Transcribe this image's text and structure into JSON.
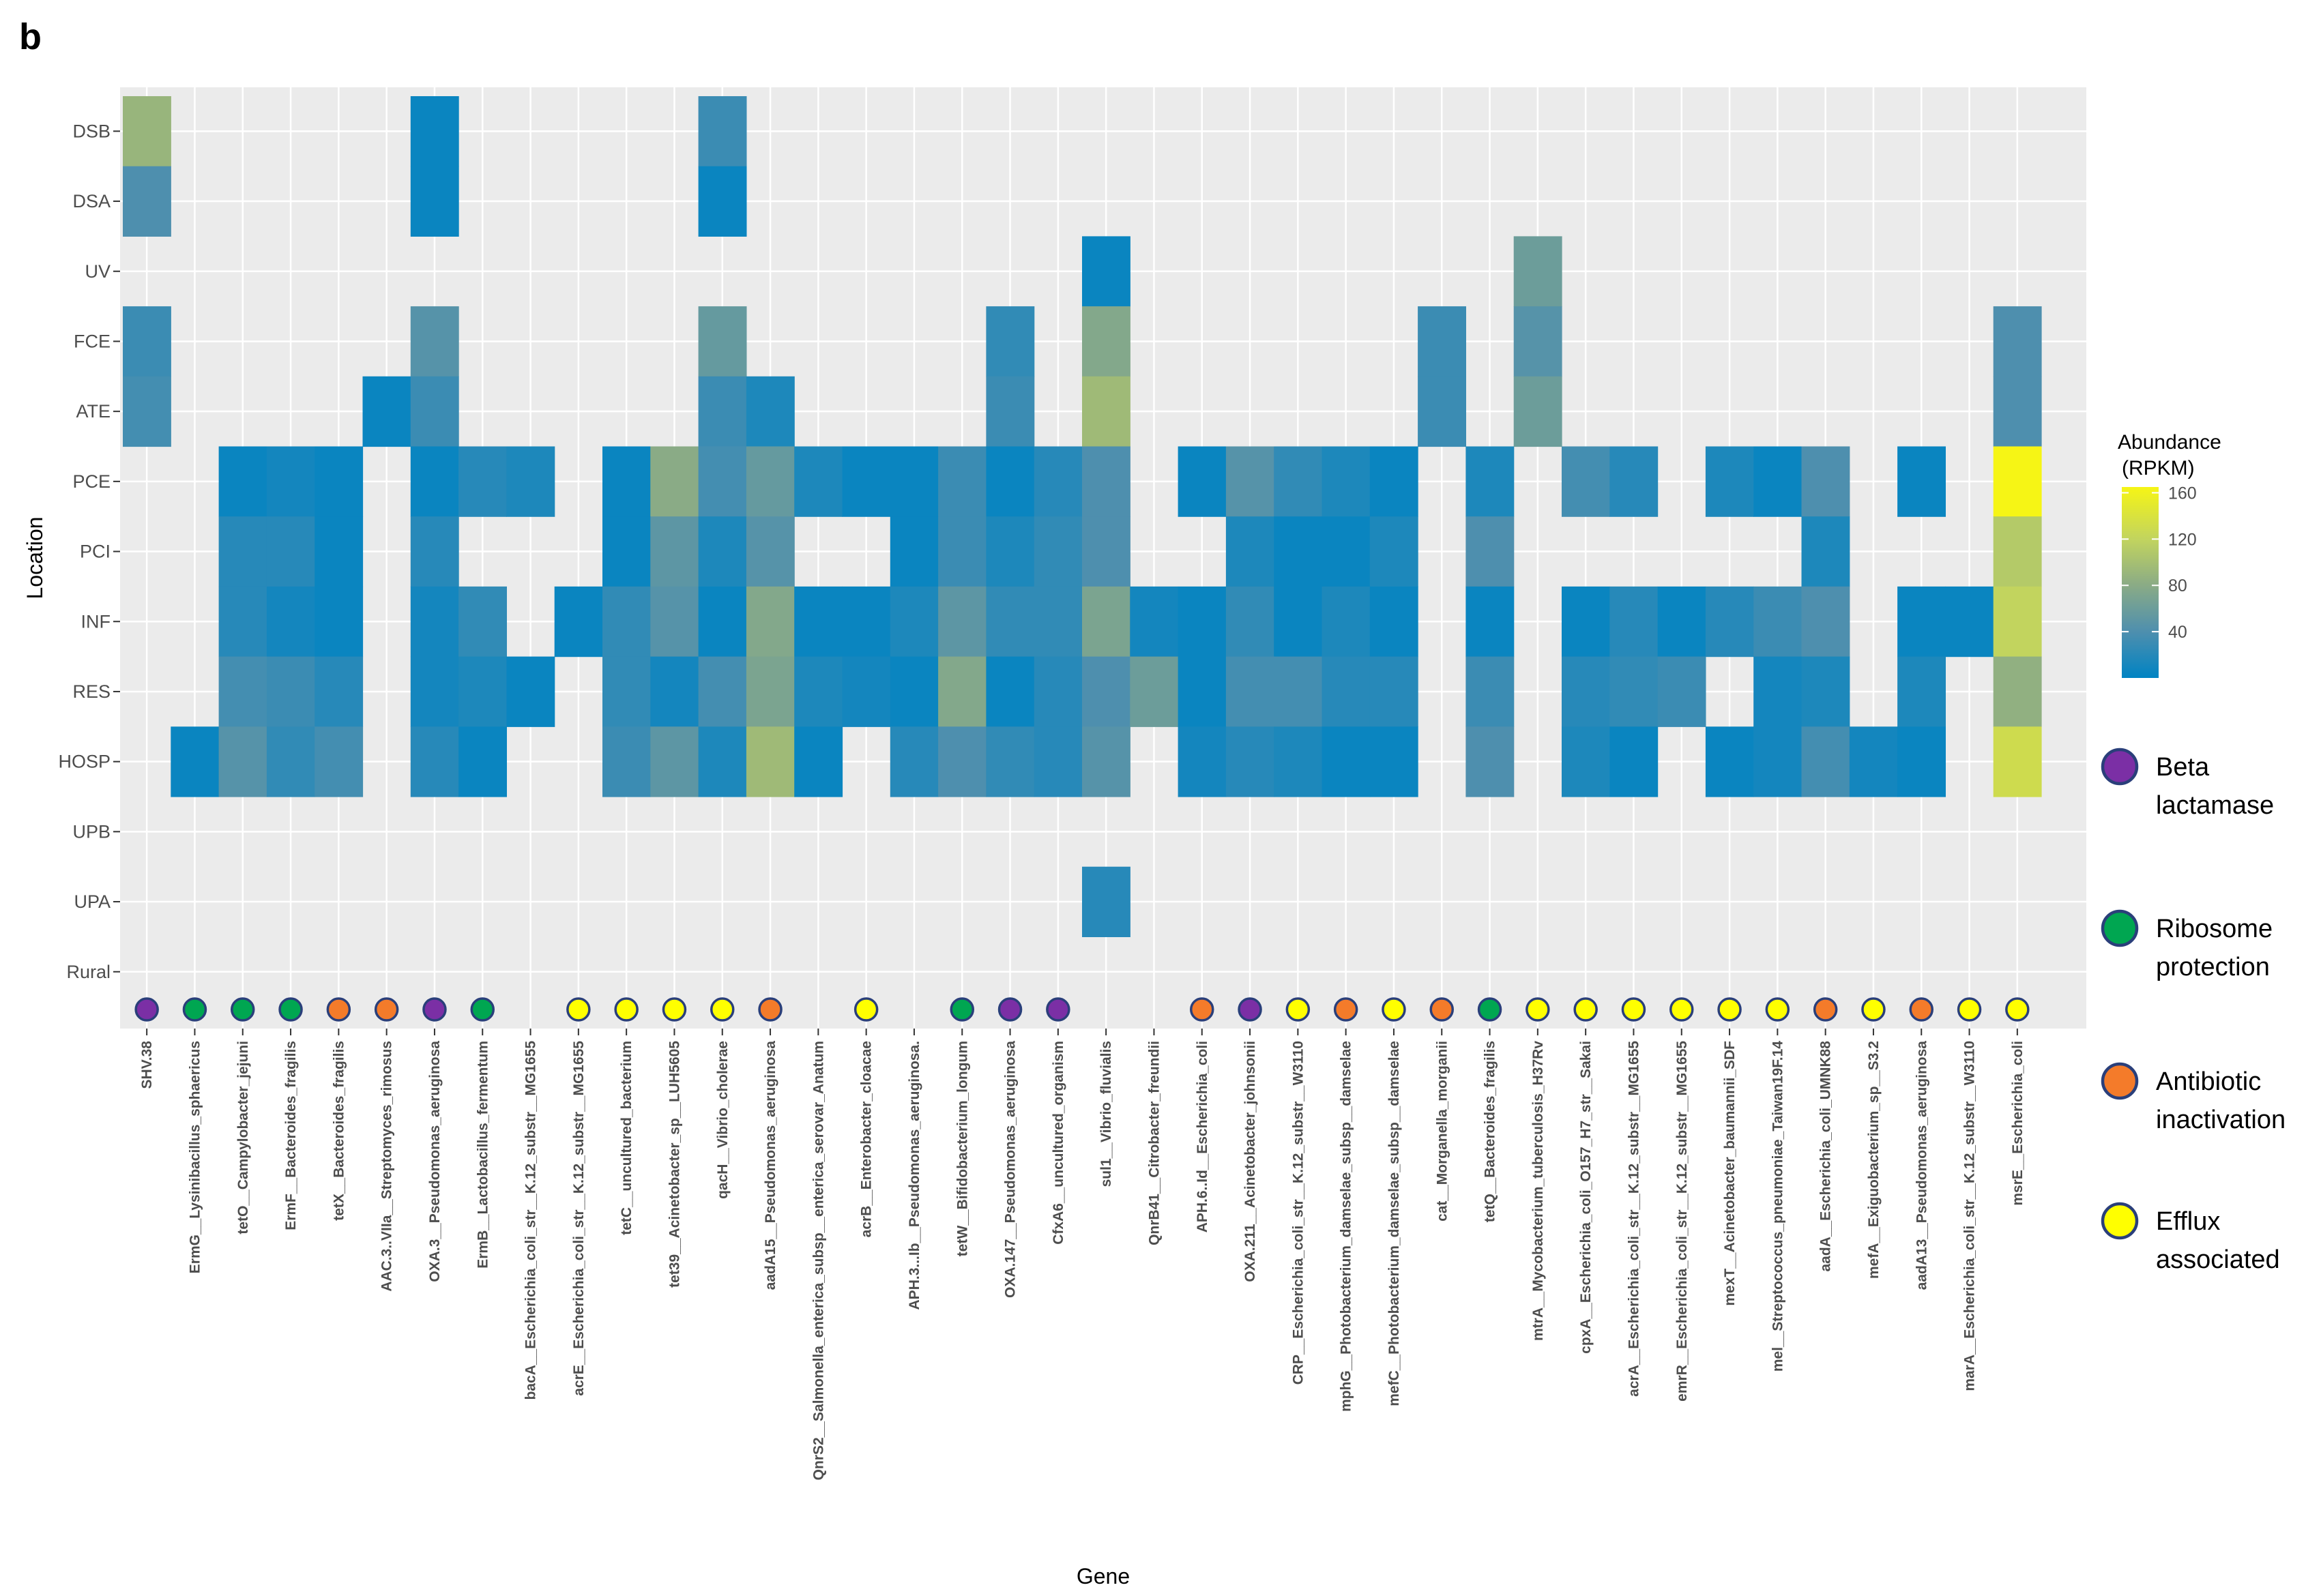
{
  "panel_label": "b",
  "chart_data": {
    "type": "heatmap",
    "xlabel": "Gene",
    "ylabel": "Location",
    "locations": [
      "DSB",
      "DSA",
      "UV",
      "FCE",
      "ATE",
      "PCE",
      "PCI",
      "INF",
      "RES",
      "HOSP",
      "UPB",
      "UPA",
      "Rural"
    ],
    "genes": [
      "SHV.38",
      "ErmG__Lysinibacillus_sphaericus",
      "tetO__Campylobacter_jejuni",
      "ErmF__Bacteroides_fragilis",
      "tetX__Bacteroides_fragilis",
      "AAC.3..VIIa__Streptomyces_rimosus",
      "OXA.3__Pseudomonas_aeruginosa",
      "ErmB__Lactobacillus_fermentum",
      "bacA__Escherichia_coli_str__K.12_substr__MG1655",
      "acrE__Escherichia_coli_str__K.12_substr__MG1655",
      "tetC__uncultured_bacterium",
      "tet39__Acinetobacter_sp__LUH5605",
      "qacH__Vibrio_cholerae",
      "aadA15__Pseudomonas_aeruginosa",
      "QnrS2__Salmonella_enterica_subsp__enterica_serovar_Anatum",
      "acrB__Enterobacter_cloacae",
      "APH.3...Ib__Pseudomonas_aeruginosa.",
      "tetW__Bifidobacterium_longum",
      "OXA.147__Pseudomonas_aeruginosa",
      "CfxA6__uncultured_organism",
      "sul1__Vibrio_fluvialis",
      "QnrB41__Citrobacter_freundii",
      "APH.6..Id__Escherichia_coli",
      "OXA.211__Acinetobacter_johnsonii",
      "CRP__Escherichia_coli_str__K.12_substr__W3110",
      "mphG__Photobacterium_damselae_subsp__damselae",
      "mefC__Photobacterium_damselae_subsp__damselae",
      "cat__Morganella_morganii",
      "tetQ__Bacteroides_fragilis",
      "mtrA__Mycobacterium_tuberculosis_H37Rv",
      "cpxA__Escherichia_coli_O157_H7_str__Sakai",
      "acrA__Escherichia_coli_str__K.12_substr__MG1655",
      "emrR__Escherichia_coli_str__K.12_substr__MG1655",
      "mexT__Acinetobacter_baumannii_SDF",
      "mel__Streptococcus_pneumoniae_Taiwan19F.14",
      "aadA__Escherichia_coli_UMNK88",
      "mefA__Exiguobacterium_sp__S3.2",
      "aadA13__Pseudomonas_aeruginosa",
      "marA__Escherichia_coli_str__K.12_substr__W3110",
      "msrE__Escherichia_coli"
    ],
    "mechanism_by_gene": [
      "Beta lactamase",
      "Ribosome protection",
      "Ribosome protection",
      "Ribosome protection",
      "Antibiotic inactivation",
      "Antibiotic inactivation",
      "Beta lactamase",
      "Ribosome protection",
      "",
      "Efflux associated",
      "Efflux associated",
      "Efflux associated",
      "Efflux associated",
      "Antibiotic inactivation",
      "",
      "Efflux associated",
      "",
      "Ribosome protection",
      "Beta lactamase",
      "Beta lactamase",
      "",
      "",
      "Antibiotic inactivation",
      "Beta lactamase",
      "Efflux associated",
      "Antibiotic inactivation",
      "Efflux associated",
      "Antibiotic inactivation",
      "Ribosome protection",
      "Efflux associated",
      "Efflux associated",
      "Efflux associated",
      "Efflux associated",
      "Efflux associated",
      "Efflux associated",
      "Antibiotic inactivation",
      "Efflux associated",
      "Antibiotic inactivation",
      "Efflux associated",
      "Efflux associated"
    ],
    "values": [
      [
        90,
        null,
        null,
        null,
        null,
        null,
        5,
        null,
        null,
        null,
        null,
        null,
        30,
        null,
        null,
        null,
        null,
        null,
        null,
        null,
        null,
        null,
        null,
        null,
        null,
        null,
        null,
        null,
        null,
        null,
        null,
        null,
        null,
        null,
        null,
        null,
        null,
        null,
        null,
        null
      ],
      [
        40,
        null,
        null,
        null,
        null,
        null,
        5,
        null,
        null,
        null,
        null,
        null,
        5,
        null,
        null,
        null,
        null,
        null,
        null,
        null,
        null,
        null,
        null,
        null,
        null,
        null,
        null,
        null,
        null,
        null,
        null,
        null,
        null,
        null,
        null,
        null,
        null,
        null,
        null,
        null
      ],
      [
        null,
        null,
        null,
        null,
        null,
        null,
        null,
        null,
        null,
        null,
        null,
        null,
        null,
        null,
        null,
        null,
        null,
        null,
        null,
        null,
        5,
        null,
        null,
        null,
        null,
        null,
        null,
        null,
        null,
        60,
        null,
        null,
        null,
        null,
        null,
        null,
        null,
        null,
        null,
        null
      ],
      [
        30,
        null,
        null,
        null,
        null,
        null,
        45,
        null,
        null,
        null,
        null,
        null,
        55,
        null,
        null,
        null,
        null,
        null,
        25,
        null,
        75,
        null,
        null,
        null,
        null,
        null,
        null,
        30,
        null,
        45,
        null,
        null,
        null,
        null,
        null,
        null,
        null,
        null,
        null,
        40
      ],
      [
        35,
        null,
        null,
        null,
        null,
        5,
        30,
        null,
        null,
        null,
        null,
        null,
        30,
        15,
        null,
        null,
        null,
        null,
        30,
        null,
        95,
        null,
        null,
        null,
        null,
        null,
        null,
        30,
        null,
        60,
        null,
        null,
        null,
        null,
        null,
        null,
        null,
        null,
        null,
        40
      ],
      [
        null,
        null,
        5,
        10,
        5,
        null,
        5,
        20,
        15,
        null,
        5,
        80,
        35,
        55,
        15,
        5,
        5,
        30,
        5,
        20,
        40,
        null,
        5,
        45,
        25,
        15,
        5,
        null,
        15,
        null,
        35,
        20,
        null,
        15,
        5,
        40,
        null,
        5,
        null,
        165
      ],
      [
        null,
        null,
        20,
        20,
        5,
        null,
        20,
        null,
        null,
        null,
        5,
        50,
        15,
        45,
        null,
        null,
        5,
        30,
        15,
        25,
        40,
        null,
        null,
        15,
        5,
        5,
        15,
        null,
        40,
        null,
        null,
        null,
        null,
        null,
        null,
        15,
        null,
        null,
        null,
        110
      ],
      [
        null,
        null,
        20,
        10,
        5,
        null,
        10,
        25,
        null,
        5,
        25,
        45,
        5,
        75,
        5,
        5,
        15,
        50,
        25,
        25,
        70,
        10,
        5,
        25,
        5,
        15,
        5,
        null,
        5,
        null,
        5,
        20,
        5,
        20,
        30,
        40,
        null,
        5,
        5,
        120
      ],
      [
        null,
        null,
        35,
        30,
        20,
        null,
        10,
        15,
        5,
        null,
        25,
        10,
        35,
        70,
        15,
        10,
        5,
        75,
        5,
        20,
        40,
        60,
        5,
        35,
        35,
        20,
        20,
        null,
        30,
        null,
        20,
        25,
        30,
        null,
        10,
        15,
        null,
        15,
        null,
        85
      ],
      [
        null,
        5,
        45,
        25,
        35,
        null,
        20,
        5,
        null,
        null,
        30,
        50,
        15,
        95,
        5,
        null,
        20,
        40,
        25,
        20,
        45,
        null,
        10,
        20,
        15,
        5,
        5,
        null,
        40,
        null,
        15,
        5,
        null,
        5,
        10,
        35,
        10,
        5,
        null,
        130
      ],
      [
        null,
        null,
        null,
        null,
        null,
        null,
        null,
        null,
        null,
        null,
        null,
        null,
        null,
        null,
        null,
        null,
        null,
        null,
        null,
        null,
        null,
        null,
        null,
        null,
        null,
        null,
        null,
        null,
        null,
        null,
        null,
        null,
        null,
        null,
        null,
        null,
        null,
        null,
        null,
        null
      ],
      [
        null,
        null,
        null,
        null,
        null,
        null,
        null,
        null,
        null,
        null,
        null,
        null,
        null,
        null,
        null,
        null,
        null,
        null,
        null,
        null,
        20,
        null,
        null,
        null,
        null,
        null,
        null,
        null,
        null,
        null,
        null,
        null,
        null,
        null,
        null,
        null,
        null,
        null,
        null,
        null
      ],
      [
        null,
        null,
        null,
        null,
        null,
        null,
        null,
        null,
        null,
        null,
        null,
        null,
        null,
        null,
        null,
        null,
        null,
        null,
        null,
        null,
        null,
        null,
        null,
        null,
        null,
        null,
        null,
        null,
        null,
        null,
        null,
        null,
        null,
        null,
        null,
        null,
        null,
        null,
        null,
        null
      ]
    ],
    "color_scale": {
      "title_line1": "Abundance",
      "title_line2": "(RPKM)",
      "min": 0,
      "max": 165,
      "ticks": [
        160,
        120,
        80,
        40
      ],
      "tick_labels": [
        "160",
        "120",
        "80",
        "40"
      ],
      "stops": [
        {
          "value": 0,
          "color": "#0083c3"
        },
        {
          "value": 40,
          "color": "#4e8fae"
        },
        {
          "value": 80,
          "color": "#8aab86"
        },
        {
          "value": 120,
          "color": "#c2d45e"
        },
        {
          "value": 165,
          "color": "#f6f515"
        }
      ]
    },
    "mechanism_legend": [
      {
        "name": "Beta lactamase",
        "line1": "Beta",
        "line2": "lactamase",
        "color": "#7b2fa5"
      },
      {
        "name": "Ribosome protection",
        "line1": "Ribosome",
        "line2": "protection",
        "color": "#00a651"
      },
      {
        "name": "Antibiotic inactivation",
        "line1": "Antibiotic",
        "line2": "inactivation",
        "color": "#f47b2a"
      },
      {
        "name": "Efflux associated",
        "line1": "Efflux",
        "line2": "associated",
        "color": "#ffff00"
      }
    ],
    "marker_outline": "#2a3f7a",
    "panel_background": "#ebebeb",
    "gridline_color": "#ffffff"
  }
}
